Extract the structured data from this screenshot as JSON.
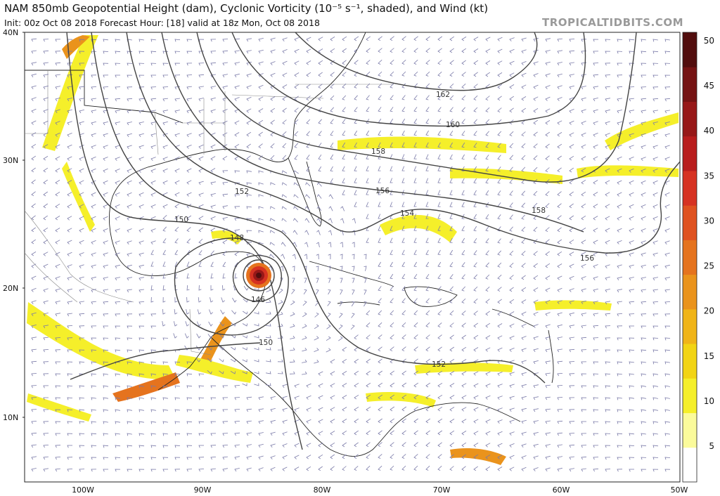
{
  "header": {
    "title": "NAM 850mb Geopotential Height (dam), Cyclonic Vorticity (10⁻⁵ s⁻¹, shaded), and Wind (kt)",
    "subtitle": "Init: 00z Oct 08 2018   Forecast Hour: [18]   valid at 18z Mon, Oct 08 2018",
    "brand": "TROPICALTIDBITS.COM"
  },
  "axes": {
    "lat_labels": [
      "40N",
      "30N",
      "20N",
      "10N"
    ],
    "lon_labels": [
      "100W",
      "90W",
      "80W",
      "70W",
      "60W",
      "50W"
    ]
  },
  "contour_labels": [
    "162",
    "160",
    "158",
    "156",
    "154",
    "152",
    "150",
    "148",
    "146",
    "158",
    "156",
    "150",
    "152"
  ],
  "colorbar": {
    "ticks": [
      "50",
      "45",
      "40",
      "35",
      "30",
      "25",
      "20",
      "15",
      "10",
      "5"
    ],
    "colors": [
      "#fbfb9b",
      "#f5ef2a",
      "#f2d414",
      "#f0b418",
      "#ea931c",
      "#e5731e",
      "#df5220",
      "#d63222",
      "#b81d1d",
      "#971818",
      "#751313",
      "#520d0d"
    ]
  }
}
